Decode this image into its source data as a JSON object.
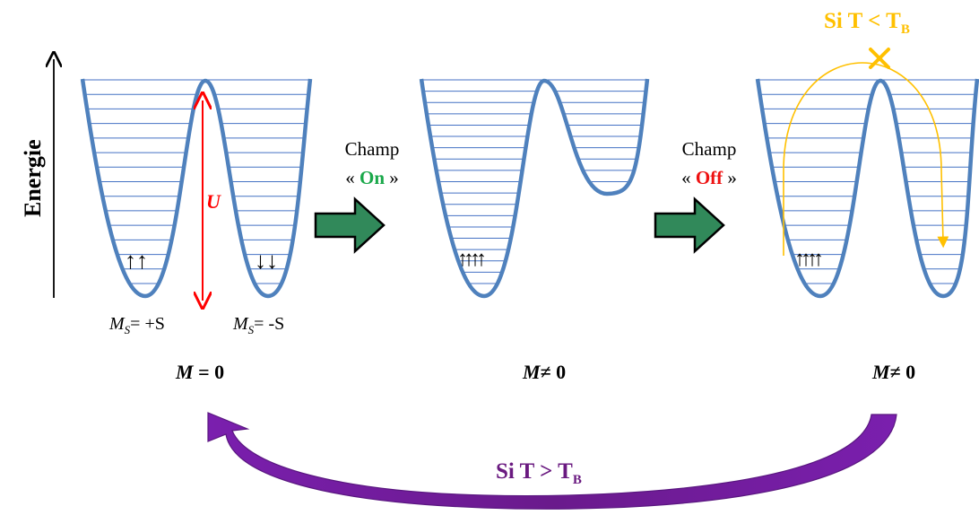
{
  "axis": {
    "label": "Energie"
  },
  "panels": [
    {
      "id": "zero-field",
      "ms_left": {
        "symbol": "M",
        "sub": "S",
        "value": "= +S"
      },
      "ms_right": {
        "symbol": "M",
        "sub": "S",
        "value": "= -S"
      },
      "barrier_label": "U",
      "magnetization": {
        "symbol": "M",
        "relation": "= 0"
      },
      "spins_left": "↑↑",
      "spins_right": "↓↓"
    },
    {
      "id": "field-on",
      "magnetization": {
        "symbol": "M",
        "relation": "≠ 0"
      },
      "spins_left": "↑↑↑↑"
    },
    {
      "id": "field-off",
      "condition": {
        "text": "Si T < T",
        "sub": "B"
      },
      "magnetization": {
        "symbol": "M",
        "relation": "≠ 0"
      },
      "spins_left": "↑↑↑↑"
    }
  ],
  "transitions": [
    {
      "line1": "Champ",
      "open": "« ",
      "state": "On",
      "close": " »",
      "state_color": "#1aa84a"
    },
    {
      "line1": "Champ",
      "open": "« ",
      "state": "Off",
      "close": " »",
      "state_color": "#ee1111"
    }
  ],
  "return_condition": {
    "text": "Si T > T",
    "sub": "B"
  },
  "colors": {
    "well": "#4f81bd",
    "levels": "#4472c4",
    "barrier_arrow": "#ff0000",
    "block_arrow_fill": "#31895a",
    "block_arrow_stroke": "#000000",
    "blocked_path": "#ffc000",
    "return_arrow": "#7030a0",
    "return_text": "#6a1a80"
  }
}
